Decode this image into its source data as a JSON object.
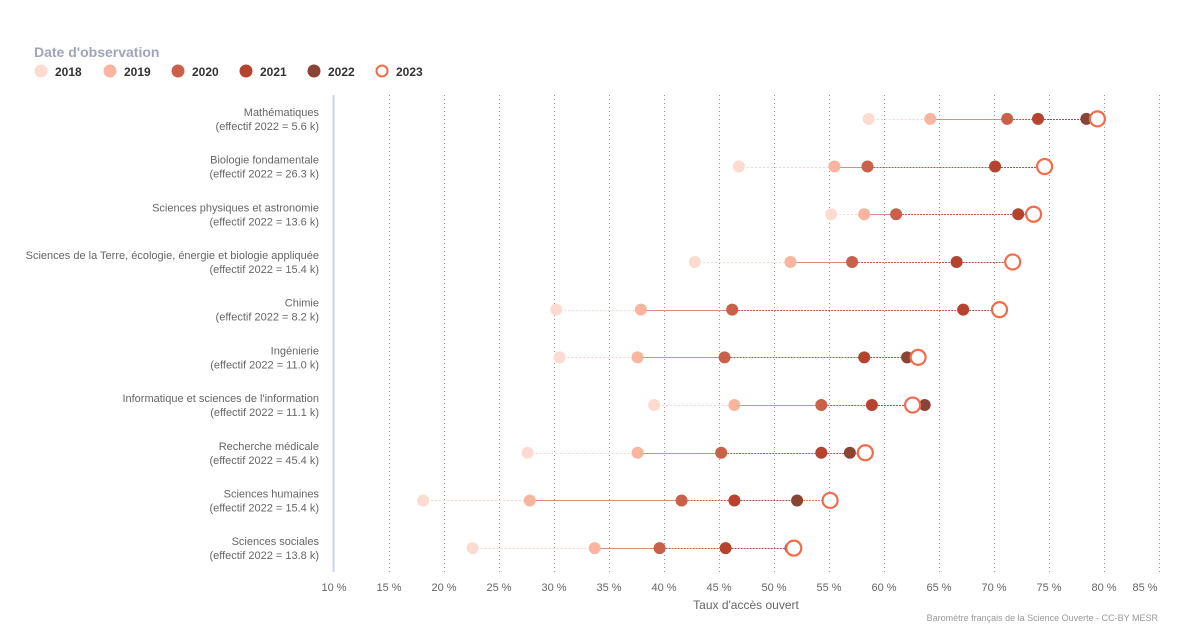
{
  "chart_data": {
    "type": "scatter",
    "subtype": "dumbbell",
    "orientation": "horizontal",
    "legend": {
      "title": "Date d'observation",
      "placement": "top-left",
      "entries": [
        "2018",
        "2019",
        "2020",
        "2021",
        "2022",
        "2023"
      ]
    },
    "series_colors": {
      "2018": "#fddbd0",
      "2019": "#fbb4a0",
      "2020": "#c9604a",
      "2021": "#b5432e",
      "2022": "#8a4435",
      "2023": "#f26b4a"
    },
    "hollow_series": "2023",
    "categories": [
      {
        "name": "Mathématiques",
        "sub": "(effectif 2022 = 5.6 k)"
      },
      {
        "name": "Biologie fondamentale",
        "sub": "(effectif 2022 = 26.3 k)"
      },
      {
        "name": "Sciences physiques et astronomie",
        "sub": "(effectif 2022 = 13.6 k)"
      },
      {
        "name": "Sciences de la Terre, écologie, énergie et biologie appliquée",
        "sub": "(effectif 2022 = 15.4 k)"
      },
      {
        "name": "Chimie",
        "sub": "(effectif 2022 = 8.2 k)"
      },
      {
        "name": "Ingénierie",
        "sub": "(effectif 2022 = 11.0 k)"
      },
      {
        "name": "Informatique et sciences de l'information",
        "sub": "(effectif 2022 = 11.1 k)"
      },
      {
        "name": "Recherche médicale",
        "sub": "(effectif 2022 = 45.4 k)"
      },
      {
        "name": "Sciences humaines",
        "sub": "(effectif 2022 = 15.4 k)"
      },
      {
        "name": "Sciences sociales",
        "sub": "(effectif 2022 = 13.8 k)"
      }
    ],
    "series": [
      {
        "name": "2018",
        "values": [
          58.6,
          46.8,
          55.2,
          42.8,
          30.2,
          30.5,
          39.1,
          27.6,
          18.1,
          22.6
        ]
      },
      {
        "name": "2019",
        "values": [
          64.2,
          55.5,
          58.2,
          51.5,
          37.9,
          37.6,
          46.4,
          37.6,
          27.8,
          33.7
        ]
      },
      {
        "name": "2020",
        "values": [
          71.2,
          58.5,
          61.1,
          57.1,
          46.2,
          45.5,
          54.3,
          45.2,
          41.6,
          39.6
        ]
      },
      {
        "name": "2021",
        "values": [
          74.0,
          70.1,
          72.2,
          66.6,
          67.2,
          58.2,
          58.9,
          54.3,
          46.4,
          45.6
        ]
      },
      {
        "name": "2022",
        "values": [
          78.4,
          74.5,
          73.5,
          71.6,
          70.4,
          62.1,
          63.7,
          56.9,
          52.1,
          51.5
        ]
      },
      {
        "name": "2023",
        "values": [
          79.4,
          74.6,
          73.6,
          71.7,
          70.5,
          63.1,
          62.6,
          58.3,
          55.1,
          51.8
        ]
      }
    ],
    "xlabel": "Taux d'accès ouvert",
    "ylabel": "",
    "xlim": [
      10,
      85
    ],
    "xticks": [
      10,
      15,
      20,
      25,
      30,
      35,
      40,
      45,
      50,
      55,
      60,
      65,
      70,
      75,
      80,
      85
    ],
    "xtick_labels": [
      "10 %",
      "15 %",
      "20 %",
      "25 %",
      "30 %",
      "35 %",
      "40 %",
      "45 %",
      "50 %",
      "55 %",
      "60 %",
      "65 %",
      "70 %",
      "75 %",
      "80 %",
      "85 %"
    ],
    "grid": "vertical dotted",
    "credits": "Baromètre français de la Science Ouverte - CC-BY MESR"
  }
}
